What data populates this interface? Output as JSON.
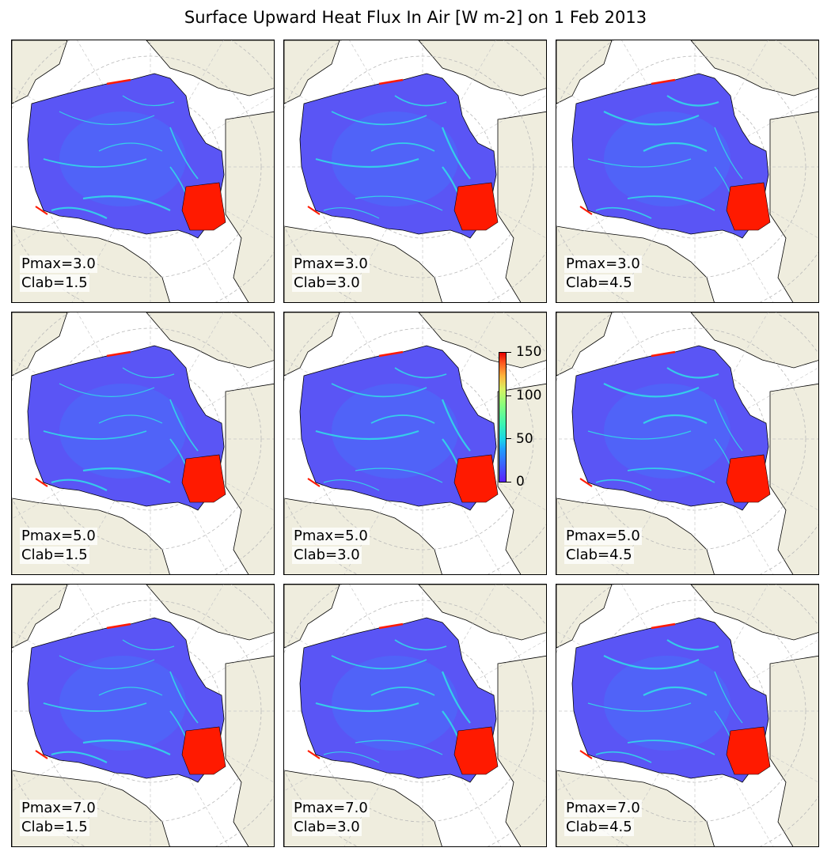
{
  "title": "Surface Upward Heat Flux In Air [W m-2] on 1 Feb 2013",
  "colorbar": {
    "min": 0,
    "max": 150,
    "ticks": [
      "0",
      "50",
      "100",
      "150"
    ],
    "colormap": "rainbow (purple-blue-cyan-green-yellow-red)"
  },
  "colors": {
    "land": "#efedde",
    "ocean": "#ffffff",
    "ice_base": "#5a55f5",
    "ice_mid": "#3f7dff",
    "lead": "#30e0e8",
    "hot": "#ff1a00"
  },
  "panels": [
    {
      "pmax": "Pmax=3.0",
      "clab": "Clab=1.5"
    },
    {
      "pmax": "Pmax=3.0",
      "clab": "Clab=3.0"
    },
    {
      "pmax": "Pmax=3.0",
      "clab": "Clab=4.5"
    },
    {
      "pmax": "Pmax=5.0",
      "clab": "Clab=1.5"
    },
    {
      "pmax": "Pmax=5.0",
      "clab": "Clab=3.0"
    },
    {
      "pmax": "Pmax=5.0",
      "clab": "Clab=4.5"
    },
    {
      "pmax": "Pmax=7.0",
      "clab": "Clab=1.5"
    },
    {
      "pmax": "Pmax=7.0",
      "clab": "Clab=3.0"
    },
    {
      "pmax": "Pmax=7.0",
      "clab": "Clab=4.5"
    }
  ]
}
